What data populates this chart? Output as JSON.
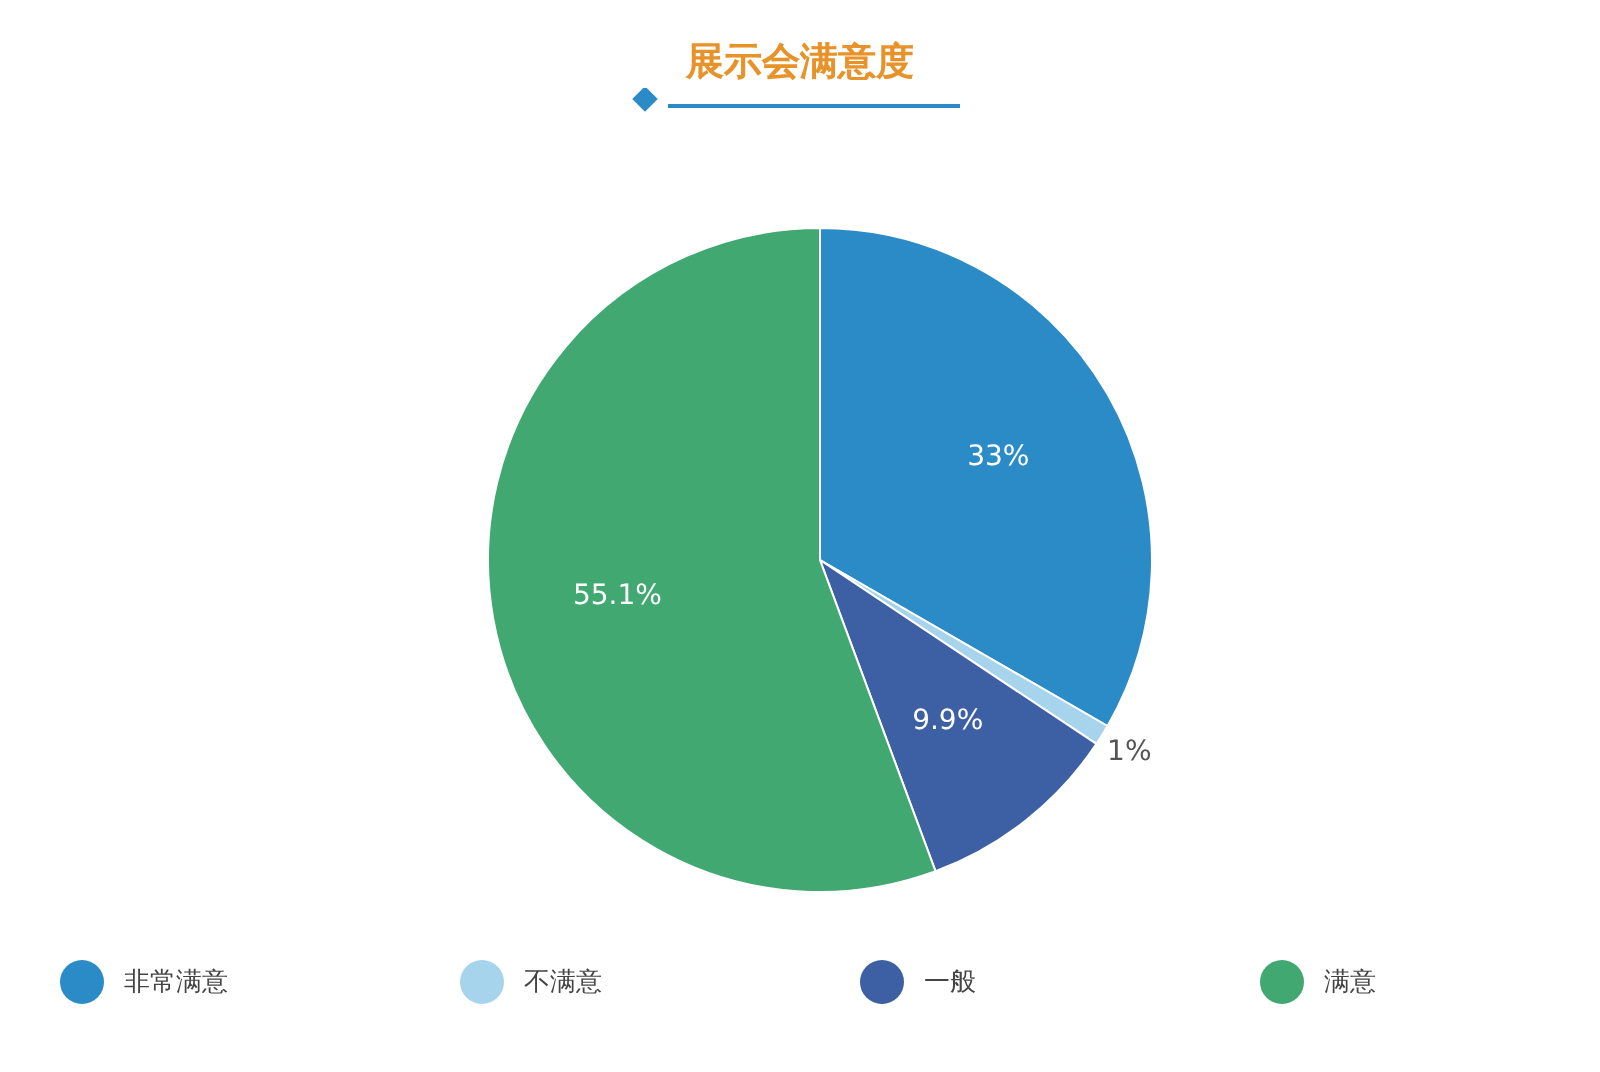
{
  "chart_data": {
    "type": "pie",
    "title": "展示会满意度",
    "categories": [
      "非常满意",
      "不满意",
      "一般",
      "满意"
    ],
    "values": [
      33,
      1,
      9.9,
      55.1
    ],
    "colors": [
      "#2b8bc6",
      "#a6d4ec",
      "#3d5fa3",
      "#42a872"
    ],
    "value_labels": [
      "33%",
      "1%",
      "9.9%",
      "55.1%"
    ],
    "legend": "bottom"
  }
}
